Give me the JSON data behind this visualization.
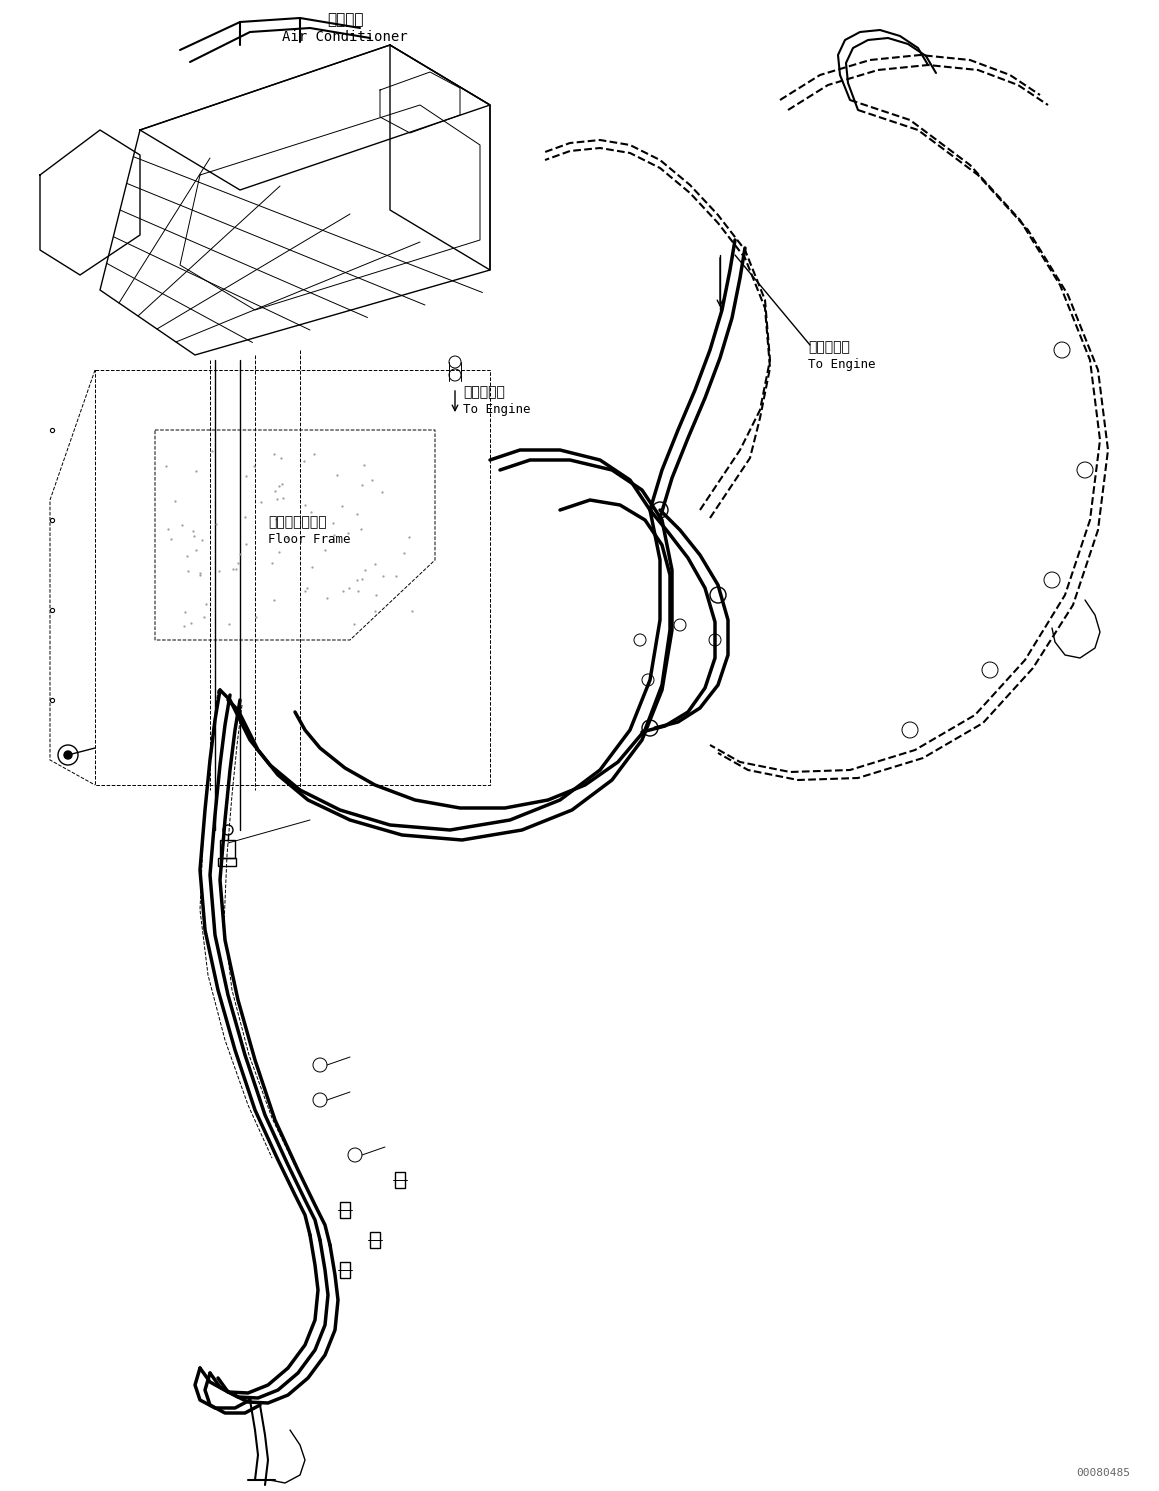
{
  "background_color": "#ffffff",
  "line_color": "#000000",
  "fig_width": 11.59,
  "fig_height": 14.91,
  "dpi": 100,
  "watermark": "00080485",
  "labels": {
    "air_conditioner_jp": "エアコン",
    "air_conditioner_en": "Air Conditioner",
    "to_engine_jp1": "エンジンへ",
    "to_engine_en1": "To Engine",
    "to_engine_jp2": "エンジンへ",
    "to_engine_en2": "To Engine",
    "floor_frame_jp": "フロアフレーム",
    "floor_frame_en": "Floor Frame"
  }
}
